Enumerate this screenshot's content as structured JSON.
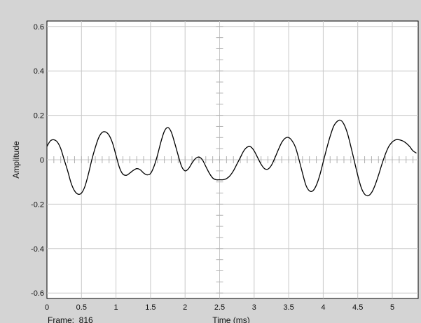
{
  "chart_data": {
    "type": "line",
    "xlabel": "Time (ms)",
    "ylabel": "Amplitude",
    "footer_label": "Frame:  816",
    "xlim": [
      0,
      5.35
    ],
    "ylim": [
      -0.61,
      0.61
    ],
    "x_ticks": [
      0,
      0.5,
      1,
      1.5,
      2,
      2.5,
      3,
      3.5,
      4,
      4.5,
      5
    ],
    "x_tick_labels": [
      "0",
      "0.5",
      "1",
      "1.5",
      "2",
      "2.5",
      "3",
      "3.5",
      "4",
      "4.5",
      "5"
    ],
    "y_ticks": [
      0.6,
      0.4,
      0.2,
      0,
      -0.2,
      -0.4,
      -0.6
    ],
    "y_tick_labels": [
      "0.6",
      "0.4",
      "0.2",
      "0",
      "-0.2",
      "-0.4",
      "-0.6"
    ],
    "grid": true,
    "series": [
      {
        "color": "#000000",
        "points": [
          [
            0.0,
            0.06
          ],
          [
            0.05,
            0.085
          ],
          [
            0.1,
            0.09
          ],
          [
            0.15,
            0.08
          ],
          [
            0.2,
            0.05
          ],
          [
            0.25,
            0.0
          ],
          [
            0.3,
            -0.05
          ],
          [
            0.35,
            -0.105
          ],
          [
            0.4,
            -0.14
          ],
          [
            0.45,
            -0.155
          ],
          [
            0.5,
            -0.15
          ],
          [
            0.55,
            -0.12
          ],
          [
            0.6,
            -0.065
          ],
          [
            0.65,
            0.0
          ],
          [
            0.7,
            0.055
          ],
          [
            0.75,
            0.1
          ],
          [
            0.8,
            0.123
          ],
          [
            0.85,
            0.125
          ],
          [
            0.9,
            0.11
          ],
          [
            0.95,
            0.075
          ],
          [
            1.0,
            0.02
          ],
          [
            1.05,
            -0.035
          ],
          [
            1.1,
            -0.065
          ],
          [
            1.15,
            -0.07
          ],
          [
            1.2,
            -0.06
          ],
          [
            1.25,
            -0.048
          ],
          [
            1.3,
            -0.04
          ],
          [
            1.35,
            -0.045
          ],
          [
            1.4,
            -0.06
          ],
          [
            1.45,
            -0.068
          ],
          [
            1.5,
            -0.062
          ],
          [
            1.55,
            -0.03
          ],
          [
            1.6,
            0.02
          ],
          [
            1.65,
            0.08
          ],
          [
            1.7,
            0.128
          ],
          [
            1.75,
            0.145
          ],
          [
            1.8,
            0.125
          ],
          [
            1.85,
            0.075
          ],
          [
            1.9,
            0.02
          ],
          [
            1.95,
            -0.03
          ],
          [
            2.0,
            -0.05
          ],
          [
            2.05,
            -0.04
          ],
          [
            2.1,
            -0.015
          ],
          [
            2.15,
            0.005
          ],
          [
            2.2,
            0.012
          ],
          [
            2.25,
            0.0
          ],
          [
            2.3,
            -0.03
          ],
          [
            2.35,
            -0.06
          ],
          [
            2.4,
            -0.082
          ],
          [
            2.45,
            -0.09
          ],
          [
            2.5,
            -0.09
          ],
          [
            2.55,
            -0.09
          ],
          [
            2.6,
            -0.085
          ],
          [
            2.65,
            -0.072
          ],
          [
            2.7,
            -0.05
          ],
          [
            2.75,
            -0.02
          ],
          [
            2.8,
            0.01
          ],
          [
            2.85,
            0.04
          ],
          [
            2.9,
            0.057
          ],
          [
            2.95,
            0.058
          ],
          [
            3.0,
            0.04
          ],
          [
            3.05,
            0.01
          ],
          [
            3.1,
            -0.02
          ],
          [
            3.15,
            -0.04
          ],
          [
            3.2,
            -0.042
          ],
          [
            3.25,
            -0.025
          ],
          [
            3.3,
            0.008
          ],
          [
            3.35,
            0.045
          ],
          [
            3.4,
            0.078
          ],
          [
            3.45,
            0.097
          ],
          [
            3.5,
            0.1
          ],
          [
            3.55,
            0.085
          ],
          [
            3.6,
            0.055
          ],
          [
            3.65,
            0.0
          ],
          [
            3.7,
            -0.06
          ],
          [
            3.75,
            -0.115
          ],
          [
            3.8,
            -0.14
          ],
          [
            3.85,
            -0.14
          ],
          [
            3.9,
            -0.115
          ],
          [
            3.95,
            -0.07
          ],
          [
            4.0,
            -0.01
          ],
          [
            4.05,
            0.05
          ],
          [
            4.1,
            0.105
          ],
          [
            4.15,
            0.15
          ],
          [
            4.2,
            0.172
          ],
          [
            4.25,
            0.178
          ],
          [
            4.3,
            0.16
          ],
          [
            4.35,
            0.12
          ],
          [
            4.4,
            0.06
          ],
          [
            4.45,
            -0.005
          ],
          [
            4.5,
            -0.07
          ],
          [
            4.55,
            -0.125
          ],
          [
            4.6,
            -0.155
          ],
          [
            4.65,
            -0.162
          ],
          [
            4.7,
            -0.148
          ],
          [
            4.75,
            -0.115
          ],
          [
            4.8,
            -0.07
          ],
          [
            4.85,
            -0.02
          ],
          [
            4.9,
            0.025
          ],
          [
            4.95,
            0.06
          ],
          [
            5.0,
            0.08
          ],
          [
            5.05,
            0.09
          ],
          [
            5.1,
            0.09
          ],
          [
            5.15,
            0.085
          ],
          [
            5.2,
            0.075
          ],
          [
            5.25,
            0.06
          ],
          [
            5.3,
            0.04
          ],
          [
            5.35,
            0.03
          ]
        ]
      }
    ]
  }
}
